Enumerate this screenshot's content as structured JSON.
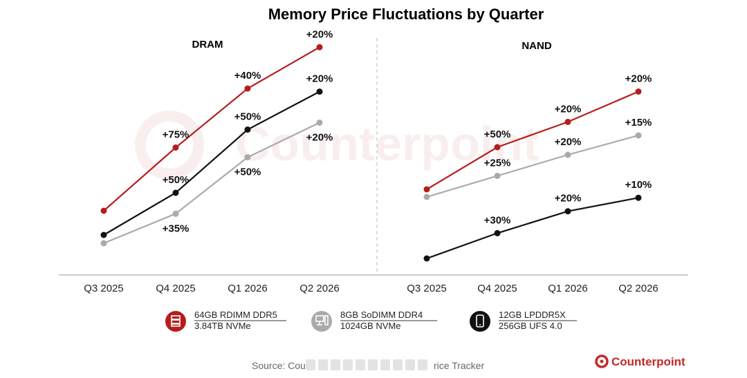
{
  "chart_data": {
    "title": "Memory Price Fluctuations by Quarter",
    "type": "line",
    "categories": [
      "Q3 2025",
      "Q4 2025",
      "Q1 2026",
      "Q2 2026"
    ],
    "colors": {
      "red": "#b71c1c",
      "gray": "#aaaaaa",
      "black": "#111111"
    },
    "panels": [
      {
        "name": "DRAM",
        "series": [
          {
            "color_key": "red",
            "index": [
              100,
              175,
              245,
              294
            ],
            "labels": [
              "",
              "+75%",
              "+40%",
              "+20%"
            ],
            "label_pos": [
              "",
              "above",
              "above",
              "above"
            ]
          },
          {
            "color_key": "black",
            "index": [
              100,
              150,
              225,
              270
            ],
            "labels": [
              "",
              "+50%",
              "+50%",
              "+20%"
            ],
            "label_pos": [
              "",
              "above",
              "above",
              "above"
            ]
          },
          {
            "color_key": "gray",
            "index": [
              100,
              135,
              202,
              243
            ],
            "labels": [
              "",
              "+35%",
              "+50%",
              "+20%"
            ],
            "label_pos": [
              "",
              "below",
              "below",
              "below"
            ]
          }
        ]
      },
      {
        "name": "NAND",
        "series": [
          {
            "color_key": "red",
            "index": [
              100,
              150,
              180,
              216
            ],
            "labels": [
              "",
              "+50%",
              "+20%",
              "+20%"
            ],
            "label_pos": [
              "",
              "above",
              "above",
              "above"
            ]
          },
          {
            "color_key": "gray",
            "index": [
              100,
              125,
              150,
              173
            ],
            "labels": [
              "",
              "+25%",
              "+20%",
              "+15%"
            ],
            "label_pos": [
              "",
              "above",
              "above",
              "above"
            ]
          },
          {
            "color_key": "black",
            "index": [
              100,
              130,
              156,
              172
            ],
            "labels": [
              "",
              "+30%",
              "+20%",
              "+10%"
            ],
            "label_pos": [
              "",
              "above",
              "above",
              "above"
            ]
          }
        ]
      }
    ],
    "legend": [
      {
        "color_key": "red",
        "icon": "server-icon",
        "line1": "64GB RDIMM DDR5",
        "line2": "3.84TB NVMe"
      },
      {
        "color_key": "gray",
        "icon": "desktop-pc-icon",
        "line1": "8GB SoDIMM DDR4",
        "line2": "1024GB NVMe"
      },
      {
        "color_key": "black",
        "icon": "smartphone-icon",
        "line1": "12GB LPDDR5X",
        "line2": "256GB UFS 4.0"
      }
    ],
    "source": "Source: Cou",
    "source_tail": "rice Tracker",
    "brand": "Counterpoint",
    "watermark": "Counterpoint"
  }
}
